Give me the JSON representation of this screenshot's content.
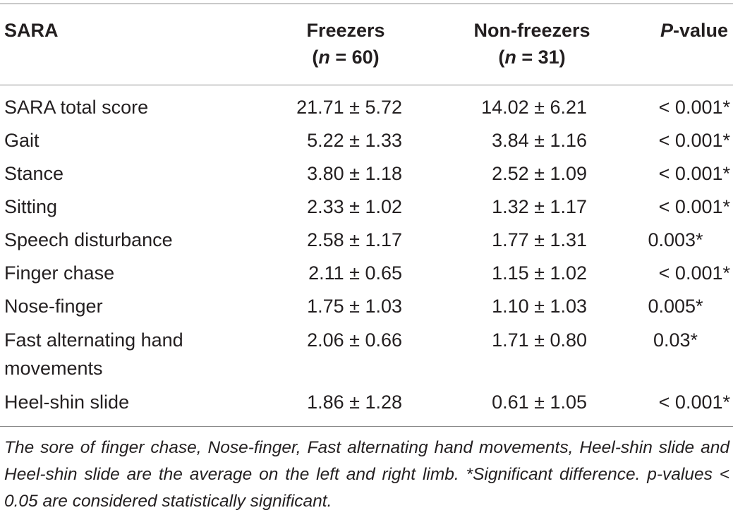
{
  "header": {
    "col1": "SARA",
    "col2_line1": "Freezers",
    "col2_n_label": "n",
    "col2_n_rest": " = 60)",
    "col2_open": "(",
    "col3_line1": "Non-freezers",
    "col3_open": "(",
    "col3_n_label": "n",
    "col3_n_rest": " = 31)",
    "col4_p": "P",
    "col4_rest": "-value"
  },
  "rows": [
    {
      "label": "SARA total score",
      "freezers": "21.71 ± 5.72",
      "non_freezers": "14.02 ± 6.21",
      "p": "< 0.001*"
    },
    {
      "label": "Gait",
      "freezers": "5.22 ± 1.33",
      "non_freezers": "3.84 ± 1.16",
      "p": "< 0.001*"
    },
    {
      "label": "Stance",
      "freezers": "3.80 ± 1.18",
      "non_freezers": "2.52 ± 1.09",
      "p": "< 0.001*"
    },
    {
      "label": "Sitting",
      "freezers": "2.33 ± 1.02",
      "non_freezers": "1.32 ± 1.17",
      "p": "< 0.001*"
    },
    {
      "label": "Speech disturbance",
      "freezers": "2.58 ± 1.17",
      "non_freezers": "1.77 ± 1.31",
      "p": "0.003*"
    },
    {
      "label": "Finger chase",
      "freezers": "2.11 ± 0.65",
      "non_freezers": "1.15 ± 1.02",
      "p": "< 0.001*"
    },
    {
      "label": "Nose-finger",
      "freezers": "1.75 ± 1.03",
      "non_freezers": "1.10 ± 1.03",
      "p": "0.005*"
    },
    {
      "label": "Fast alternating hand movements",
      "freezers": "2.06 ± 0.66",
      "non_freezers": "1.71 ± 0.80",
      "p": "0.03*"
    },
    {
      "label": "Heel-shin slide",
      "freezers": "1.86 ± 1.28",
      "non_freezers": "0.61 ± 1.05",
      "p": "< 0.001*"
    }
  ],
  "footnote": "The sore of finger chase, Nose-finger, Fast alternating hand movements, Heel-shin slide and Heel-shin slide are the average on the left and right limb. *Significant difference. p-values < 0.05 are considered statistically significant."
}
